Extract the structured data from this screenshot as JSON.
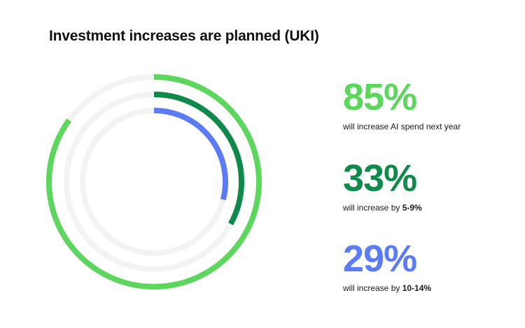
{
  "chart_data": {
    "type": "radial-bar",
    "title": "Investment increases are planned (UKI)",
    "series": [
      {
        "name": "85%",
        "value": 85,
        "label": "will increase AI spend next year",
        "label_bold": "",
        "color": "#5cd65c"
      },
      {
        "name": "33%",
        "value": 33,
        "label": "will increase by ",
        "label_bold": "5-9%",
        "color": "#0f8a4a"
      },
      {
        "name": "29%",
        "value": 29,
        "label": "will increase by ",
        "label_bold": "10-14%",
        "color": "#5b7cf5"
      }
    ],
    "max": 100,
    "track_color": "#f3f3f3"
  }
}
